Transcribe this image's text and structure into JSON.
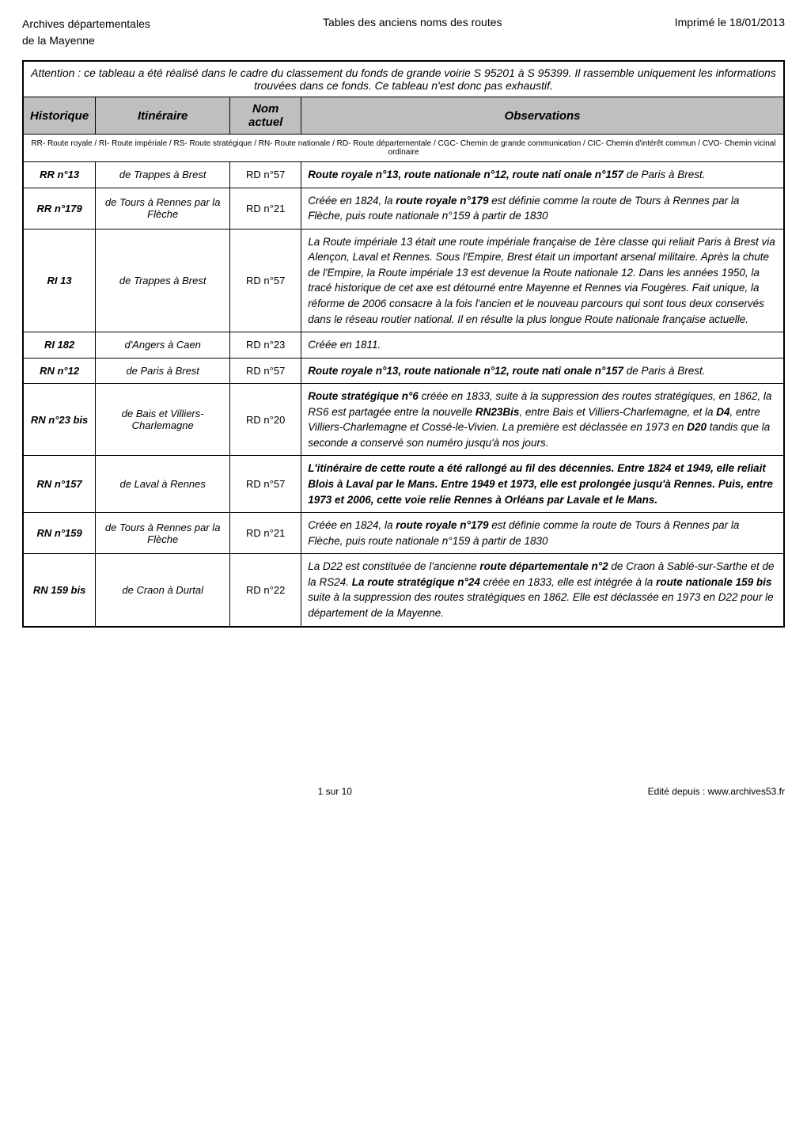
{
  "header": {
    "left_line1": "Archives départementales",
    "left_line2": "de la Mayenne",
    "center": "Tables des anciens noms des routes",
    "right": "Imprimé le 18/01/2013"
  },
  "notice": "Attention : ce tableau a été réalisé dans le cadre du classement du fonds de grande voirie S 95201 à S 95399. Il rassemble uniquement les informations trouvées dans ce fonds. Ce tableau n'est donc pas exhaustif.",
  "columns": {
    "c1": "Historique",
    "c2": "Itinéraire",
    "c3": "Nom actuel",
    "c4": "Observations"
  },
  "legend": "RR- Route royale / RI- Route impériale / RS- Route stratégique / RN- Route nationale / RD- Route départementale / CGC- Chemin de grande communication / CIC- Chemin d'intérêt commun / CVO- Chemin vicinal ordinaire",
  "rows": [
    {
      "hist": "RR n°13",
      "itin": "de Trappes à Brest",
      "nom": "RD n°57",
      "obs": "<b>Route royale n°13, route nationale n°12, route nati onale n°157</b> de Paris à Brest."
    },
    {
      "hist": "RR n°179",
      "itin": "de Tours à Rennes par la Flèche",
      "nom": "RD n°21",
      "obs": "Créée en 1824, la <b>route royale n°179</b> est définie comme la route de Tours à Rennes par la Flèche, puis route nationale n°159 à partir de 1830"
    },
    {
      "hist": "RI 13",
      "itin": "de Trappes à Brest",
      "nom": "RD n°57",
      "obs": "La Route impériale 13 était une route impériale française de 1ère classe qui reliait Paris à Brest via Alençon, Laval et Rennes. Sous l'Empire, Brest était un important arsenal militaire. Après la chute de l'Empire, la Route impériale 13 est devenue la Route nationale 12. Dans les années 1950, la tracé historique de cet axe est détourné entre Mayenne et Rennes via Fougères. Fait unique, la réforme de 2006 consacre à la fois l'ancien et le nouveau parcours qui sont tous deux conservés dans le réseau routier national. Il en résulte la plus longue Route nationale française actuelle."
    },
    {
      "hist": "RI 182",
      "itin": "d'Angers à Caen",
      "nom": "RD n°23",
      "obs": "Créée en 1811."
    },
    {
      "hist": "RN n°12",
      "itin": "de Paris à Brest",
      "nom": "RD n°57",
      "obs": "<b>Route royale n°13, route nationale n°12, route nati onale n°157</b> de Paris à Brest."
    },
    {
      "hist": "RN n°23 bis",
      "itin": "de Bais et Villiers-Charlemagne",
      "nom": "RD n°20",
      "obs": "<b>Route stratégique n°6</b> créée en 1833, suite à la suppression des routes stratégiques, en 1862, la RS6 est partagée entre la nouvelle <b>RN23Bis</b>, entre Bais et Villiers-Charlemagne, et la <b>D4</b>, entre Villiers-Charlemagne et Cossé-le-Vivien. La première est déclassée en 1973 en <b>D20</b> tandis que la seconde a conservé son numéro jusqu'à nos jours."
    },
    {
      "hist": "RN n°157",
      "itin": "de Laval à Rennes",
      "nom": "RD n°57",
      "obs": "<b>L'itinéraire de cette route a été rallongé au fil des décennies. Entre 1824 et 1949, elle reliait Blois à Laval par le Mans. Entre 1949 et 1973, elle est prolongée jusqu'à Rennes. Puis, entre 1973 et 2006, cette voie relie Rennes à Orléans par Lavale et le Mans.</b>"
    },
    {
      "hist": "RN n°159",
      "itin": "de Tours à Rennes par la Flèche",
      "nom": "RD n°21",
      "obs": "Créée en 1824, la <b>route royale n°179</b> est définie comme la route de Tours à Rennes par la Flèche, puis route nationale n°159 à partir de 1830"
    },
    {
      "hist": "RN 159 bis",
      "itin": "de Craon à Durtal",
      "nom": "RD n°22",
      "obs": "La D22 est constituée de l'ancienne <b>route départementale n°2</b> de Craon à Sablé-sur-Sarthe et de la RS24. <b>La route stratégique n°24</b> créée en 1833, elle est intégrée à la <b>route nationale 159 bis</b> suite à la suppression des routes stratégiques en 1862. Elle est déclassée en 1973 en D22 pour le département de la Mayenne."
    }
  ],
  "footer": {
    "center": "1 sur 10",
    "right": "Edité depuis : www.archives53.fr"
  }
}
